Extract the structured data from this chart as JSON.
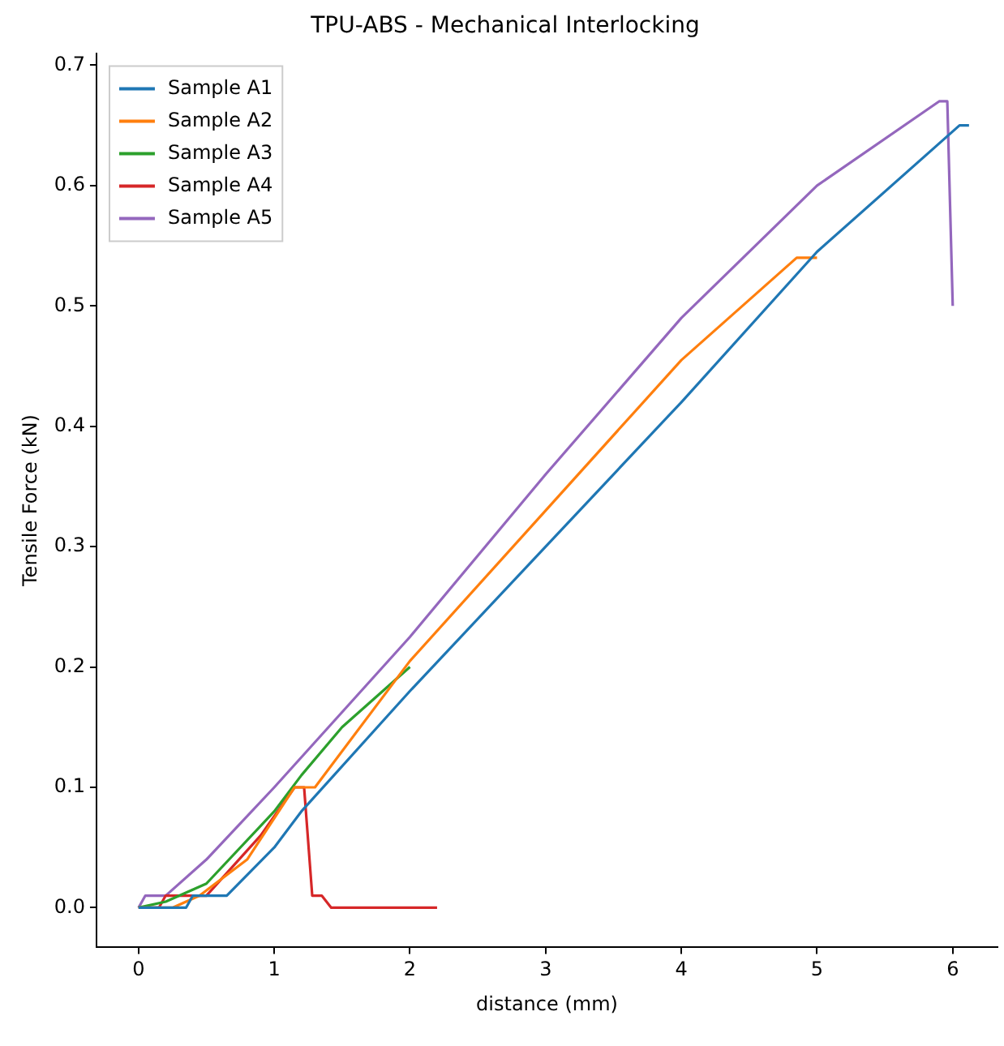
{
  "chart_data": {
    "type": "line",
    "title": "TPU-ABS - Mechanical Interlocking",
    "xlabel": "distance (mm)",
    "ylabel": "Tensile Force (kN)",
    "xlim": [
      -0.31,
      6.33
    ],
    "ylim": [
      -0.033,
      0.71
    ],
    "xticks": [
      0,
      1,
      2,
      3,
      4,
      5,
      6
    ],
    "yticks": [
      {
        "value": 0,
        "label": "0.0"
      },
      0.1,
      0.2,
      0.3,
      0.4,
      0.5,
      0.6,
      0.7
    ],
    "grid": false,
    "legend": "top left",
    "marker": "none",
    "line_style": "solid",
    "series": [
      {
        "name": "Sample A1",
        "color": "#1f77b4",
        "x": [
          0,
          0.35,
          0.4,
          0.65,
          1,
          1.2,
          2,
          3,
          4,
          5,
          6.05,
          6.12
        ],
        "values": [
          0,
          0,
          0.01,
          0.01,
          0.05,
          0.08,
          0.18,
          0.3,
          0.42,
          0.545,
          0.65,
          0.65
        ]
      },
      {
        "name": "Sample A2",
        "color": "#ff7f0e",
        "x": [
          0,
          0.25,
          0.45,
          0.8,
          1.15,
          1.3,
          2,
          3,
          4,
          4.85,
          5.0
        ],
        "values": [
          0,
          0,
          0.01,
          0.04,
          0.1,
          0.1,
          0.205,
          0.33,
          0.455,
          0.54,
          0.54
        ]
      },
      {
        "name": "Sample A3",
        "color": "#2ca02c",
        "x": [
          0,
          0.2,
          0.5,
          1,
          1.2,
          1.5,
          2
        ],
        "values": [
          0,
          0.005,
          0.02,
          0.08,
          0.11,
          0.15,
          0.2
        ]
      },
      {
        "name": "Sample A4",
        "color": "#d62728",
        "x": [
          0,
          0.15,
          0.2,
          0.5,
          0.9,
          1.15,
          1.22,
          1.28,
          1.35,
          1.42,
          2.2
        ],
        "values": [
          0,
          0,
          0.01,
          0.01,
          0.06,
          0.1,
          0.1,
          0.01,
          0.01,
          0,
          0
        ]
      },
      {
        "name": "Sample A5",
        "color": "#9467bd",
        "x": [
          0,
          0.05,
          0.2,
          0.5,
          1,
          2,
          3,
          4,
          5,
          5.9,
          5.96,
          6.0
        ],
        "values": [
          0,
          0.01,
          0.01,
          0.04,
          0.1,
          0.225,
          0.36,
          0.49,
          0.6,
          0.67,
          0.67,
          0.5
        ]
      }
    ]
  }
}
